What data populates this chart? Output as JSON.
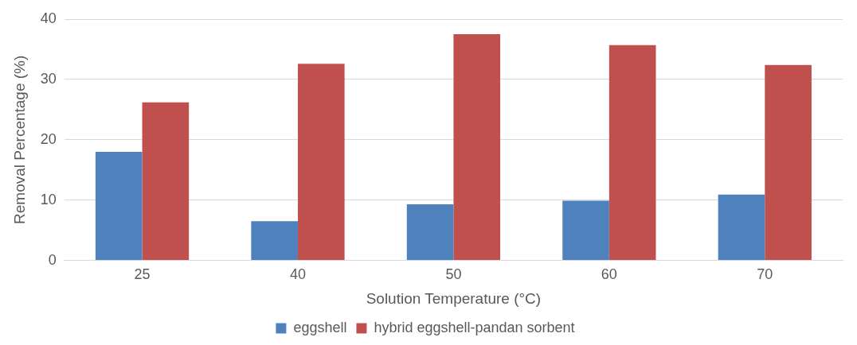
{
  "chart_data": {
    "type": "bar",
    "xlabel": "Solution Temperature (°C)",
    "ylabel": "Removal Percentage (%)",
    "categories": [
      "25",
      "40",
      "50",
      "60",
      "70"
    ],
    "series": [
      {
        "name": "eggshell",
        "color": "#4f81bd",
        "values": [
          18.0,
          6.5,
          9.3,
          9.9,
          10.9
        ]
      },
      {
        "name": "hybrid eggshell-pandan sorbent",
        "color": "#c0504d",
        "values": [
          26.2,
          32.6,
          37.5,
          35.7,
          32.4
        ]
      }
    ],
    "ylim": [
      0,
      40
    ],
    "yticks": [
      0,
      10,
      20,
      30,
      40
    ],
    "grid": "y",
    "legend": "bottom"
  }
}
